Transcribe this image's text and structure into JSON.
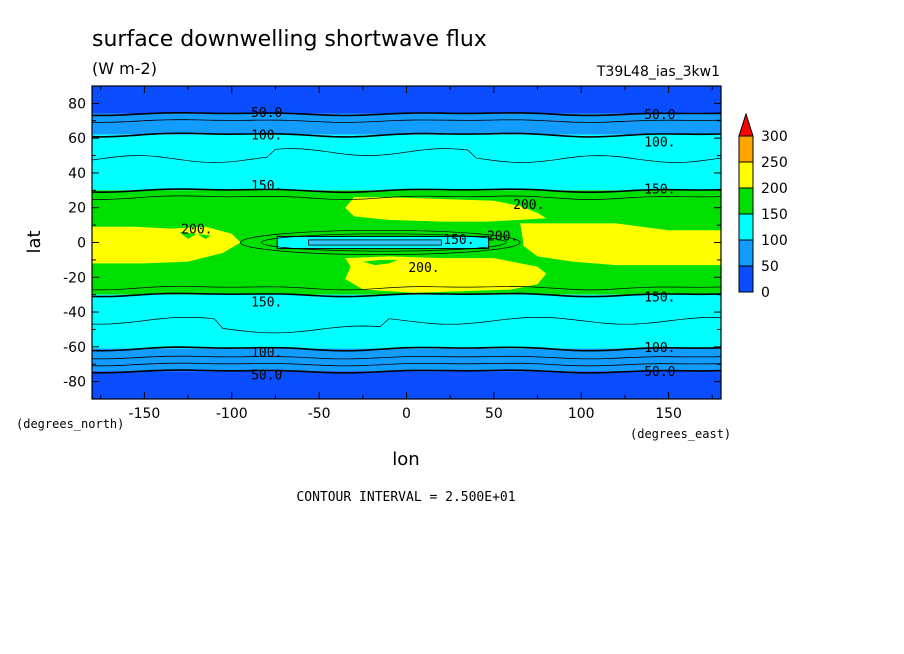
{
  "chart_data": {
    "type": "heatmap",
    "title": "surface downwelling shortwave flux",
    "subtitle": "(W m-2)",
    "dataset": "T39L48_ias_3kw1",
    "xlabel": "lon",
    "ylabel": "lat",
    "xunits": "(degrees_east)",
    "yunits": "(degrees_north)",
    "xlim": [
      -180,
      180
    ],
    "ylim": [
      -90,
      90
    ],
    "xticks": [
      -150,
      -100,
      -50,
      0,
      50,
      100,
      150
    ],
    "yticks": [
      80,
      60,
      40,
      20,
      0,
      -20,
      -40,
      -60,
      -80
    ],
    "xtick_labels": [
      "-150",
      "-100",
      "-50",
      "0",
      "50",
      "100",
      "150"
    ],
    "ytick_labels": [
      "80",
      "60",
      "40",
      "20",
      "0",
      "-20",
      "-40",
      "-60",
      "-80"
    ],
    "footer": "CONTOUR INTERVAL = 2.500E+01",
    "colorbar": {
      "levels": [
        "0",
        "50",
        "100",
        "150",
        "200",
        "250",
        "300"
      ],
      "colors": [
        "#0a4dff",
        "#129cff",
        "#00ffff",
        "#00e000",
        "#ffff00",
        "#ffa500",
        "#ff0000"
      ]
    },
    "contour_labels": [
      {
        "text": "50.0",
        "lon": -80,
        "lat": 75
      },
      {
        "text": "50.0",
        "lon": 145,
        "lat": 74
      },
      {
        "text": "100.",
        "lon": -80,
        "lat": 62
      },
      {
        "text": "100.",
        "lon": 145,
        "lat": 58
      },
      {
        "text": "150.",
        "lon": -80,
        "lat": 33
      },
      {
        "text": "150.",
        "lon": 145,
        "lat": 31
      },
      {
        "text": "200.",
        "lon": 70,
        "lat": 22
      },
      {
        "text": "200.",
        "lon": -120,
        "lat": 8
      },
      {
        "text": "150.",
        "lon": 30,
        "lat": 2
      },
      {
        "text": "200.",
        "lon": 55,
        "lat": 4
      },
      {
        "text": "200.",
        "lon": 10,
        "lat": -14
      },
      {
        "text": "150.",
        "lon": -80,
        "lat": -34
      },
      {
        "text": "150.",
        "lon": 145,
        "lat": -31
      },
      {
        "text": "100.",
        "lon": -80,
        "lat": -63
      },
      {
        "text": "100.",
        "lon": 145,
        "lat": -60
      },
      {
        "text": "50.0",
        "lon": -80,
        "lat": -76
      },
      {
        "text": "50.0",
        "lon": 145,
        "lat": -74
      }
    ]
  }
}
